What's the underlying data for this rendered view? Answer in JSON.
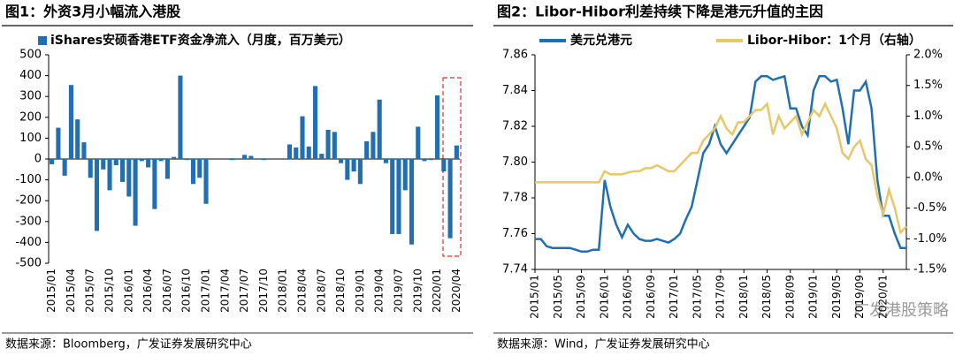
{
  "chart_data": [
    {
      "type": "bar",
      "title": "图1：外资3月小幅流入港股",
      "series": [
        {
          "name": "iShares安硕香港ETF资金净流入（月度，百万美元）",
          "color": "#1f6fb2",
          "values": [
            -25,
            150,
            -80,
            355,
            190,
            80,
            -90,
            -345,
            -50,
            -150,
            -30,
            -110,
            -180,
            -320,
            -10,
            -40,
            -240,
            -10,
            -95,
            10,
            400,
            -5,
            -120,
            -90,
            -215,
            0,
            0,
            0,
            -5,
            0,
            20,
            15,
            0,
            -5,
            0,
            0,
            0,
            70,
            55,
            205,
            60,
            350,
            25,
            140,
            130,
            -20,
            -100,
            -60,
            -120,
            85,
            130,
            285,
            -20,
            -360,
            -360,
            -150,
            -410,
            155,
            -10,
            -5,
            305,
            -60,
            -380,
            65
          ]
        }
      ],
      "categories": [
        "2015/01",
        null,
        null,
        "2015/04",
        null,
        null,
        "2015/07",
        null,
        null,
        "2015/10",
        null,
        null,
        "2016/01",
        null,
        null,
        "2016/04",
        null,
        null,
        "2016/07",
        null,
        null,
        "2016/10",
        null,
        null,
        "2017/01",
        null,
        null,
        "2017/04",
        null,
        null,
        "2017/07",
        null,
        null,
        "2017/10",
        null,
        null,
        "2018/01",
        null,
        null,
        "2018/04",
        null,
        null,
        "2018/07",
        null,
        null,
        "2018/10",
        null,
        null,
        "2019/01",
        null,
        null,
        "2019/04",
        null,
        null,
        "2019/07",
        null,
        null,
        "2019/10",
        null,
        null,
        "2020/01",
        null,
        null,
        "2020/04"
      ],
      "ylim": [
        -500,
        500
      ],
      "yticks": [
        -500,
        -400,
        -300,
        -200,
        -100,
        0,
        100,
        200,
        300,
        400,
        500
      ],
      "source": "数据来源：Bloomberg，广发证券发展研究中心"
    },
    {
      "type": "line",
      "title": "图2：Libor-Hibor利差持续下降是港元升值的主因",
      "series": [
        {
          "name": "美元兑港元",
          "color": "#1f6fb2",
          "values": [
            7.757,
            7.757,
            7.753,
            7.752,
            7.752,
            7.752,
            7.752,
            7.751,
            7.75,
            7.75,
            7.751,
            7.751,
            7.79,
            7.775,
            7.765,
            7.758,
            7.765,
            7.76,
            7.757,
            7.756,
            7.756,
            7.757,
            7.756,
            7.755,
            7.757,
            7.76,
            7.768,
            7.775,
            7.79,
            7.805,
            7.81,
            7.82,
            7.81,
            7.805,
            7.81,
            7.815,
            7.82,
            7.825,
            7.845,
            7.848,
            7.848,
            7.846,
            7.847,
            7.848,
            7.83,
            7.83,
            7.82,
            7.815,
            7.84,
            7.848,
            7.848,
            7.845,
            7.846,
            7.83,
            7.81,
            7.84,
            7.84,
            7.845,
            7.83,
            7.79,
            7.77,
            7.77,
            7.76,
            7.752,
            7.752
          ]
        },
        {
          "name": "Libor-Hibor：1个月（右轴）",
          "color": "#e6c76a",
          "axis": "y2",
          "values": [
            -0.08,
            -0.08,
            -0.08,
            -0.08,
            -0.08,
            -0.08,
            -0.08,
            -0.08,
            -0.08,
            -0.08,
            -0.08,
            -0.08,
            0.1,
            0.05,
            0.05,
            0.05,
            0.08,
            0.1,
            0.1,
            0.15,
            0.15,
            0.2,
            0.15,
            0.1,
            0.1,
            0.2,
            0.3,
            0.4,
            0.4,
            0.6,
            0.7,
            0.8,
            1.0,
            0.8,
            0.7,
            0.9,
            0.9,
            1.0,
            1.1,
            1.1,
            1.2,
            0.7,
            1.0,
            0.8,
            0.9,
            1.0,
            0.7,
            0.9,
            1.1,
            1.0,
            1.2,
            1.0,
            0.8,
            0.4,
            0.3,
            0.5,
            0.6,
            0.3,
            0.2,
            -0.3,
            -0.6,
            -0.2,
            -0.5,
            -0.9,
            -0.8
          ]
        }
      ],
      "categories": [
        "2015/01",
        null,
        null,
        null,
        "2015/05",
        null,
        null,
        null,
        "2015/09",
        null,
        null,
        null,
        "2016/01",
        null,
        null,
        null,
        "2016/05",
        null,
        null,
        null,
        "2016/09",
        null,
        null,
        null,
        "2017/01",
        null,
        null,
        null,
        "2017/05",
        null,
        null,
        null,
        "2017/09",
        null,
        null,
        null,
        "2018/01",
        null,
        null,
        null,
        "2018/05",
        null,
        null,
        null,
        "2018/09",
        null,
        null,
        null,
        "2019/01",
        null,
        null,
        null,
        "2019/05",
        null,
        null,
        null,
        "2019/09",
        null,
        null,
        null,
        "2020/01",
        null,
        null,
        null,
        null
      ],
      "ylim": [
        7.74,
        7.86
      ],
      "yticks": [
        7.74,
        7.76,
        7.78,
        {
          "value": 7.8,
          "label": "7.80"
        },
        7.82,
        7.84,
        7.86
      ],
      "y2lim": [
        -1.5,
        2.0
      ],
      "y2ticks": [
        {
          "value": -1.5,
          "label": "-1.5%"
        },
        {
          "value": -1.0,
          "label": "-1.0%"
        },
        {
          "value": -0.5,
          "label": "-0.5%"
        },
        {
          "value": 0,
          "label": "0.0%"
        },
        {
          "value": 0.5,
          "label": "0.5%"
        },
        {
          "value": 1.0,
          "label": "1.0%"
        },
        {
          "value": 1.5,
          "label": "1.5%"
        },
        {
          "value": 2.0,
          "label": "2.0%"
        }
      ],
      "source": "数据来源：Wind，广发证券发展研究中心",
      "watermark": "广发港股策略"
    }
  ]
}
